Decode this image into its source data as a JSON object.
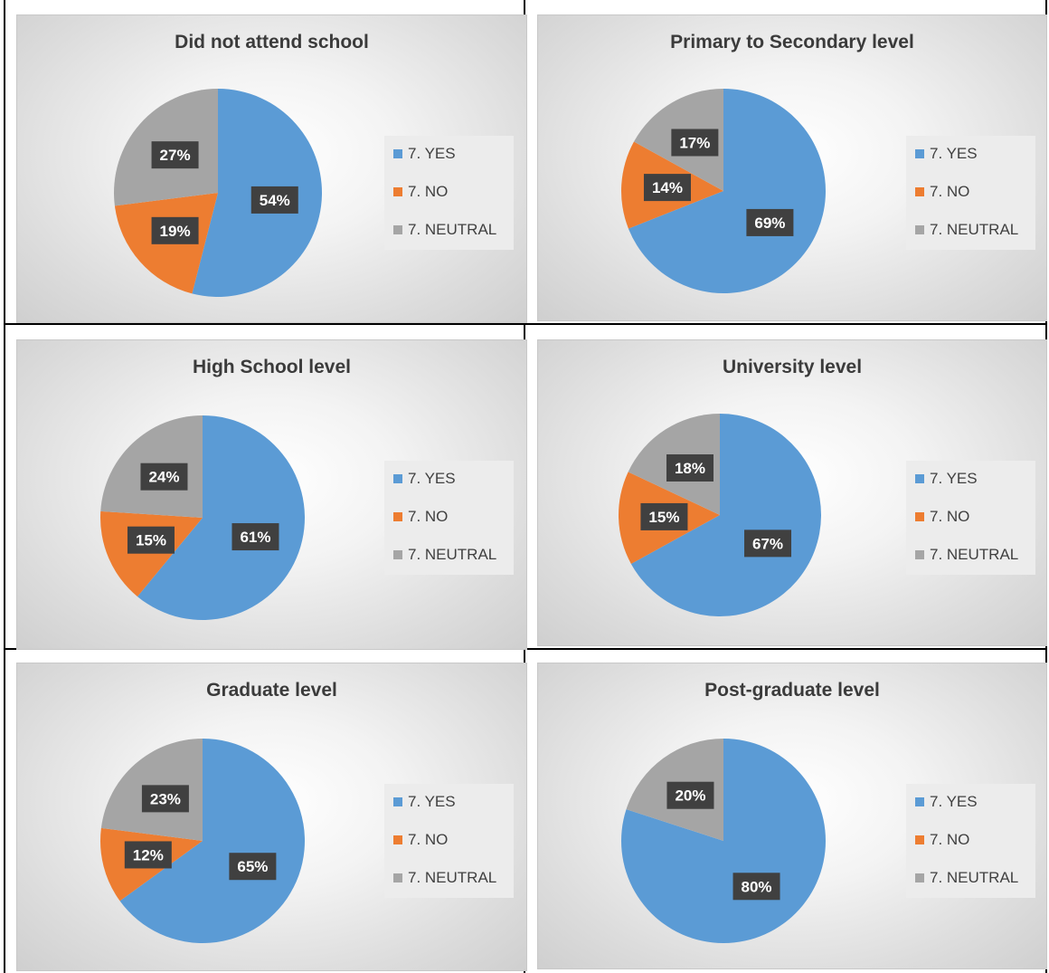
{
  "series_names": [
    "7. YES",
    "7. NO",
    "7. NEUTRAL"
  ],
  "colors": {
    "YES": "#5b9bd5",
    "NO": "#ed7d31",
    "NEUTRAL": "#a5a5a5",
    "label_bg": "#404040"
  },
  "chart_data": [
    {
      "type": "pie",
      "title": "Did not attend school",
      "categories": [
        "7. YES",
        "7. NO",
        "7. NEUTRAL"
      ],
      "values": [
        54,
        19,
        27
      ],
      "data_labels": [
        "54%",
        "19%",
        "27%"
      ],
      "legend": "right"
    },
    {
      "type": "pie",
      "title": "Primary to Secondary level",
      "categories": [
        "7. YES",
        "7. NO",
        "7. NEUTRAL"
      ],
      "values": [
        69,
        14,
        17
      ],
      "data_labels": [
        "69%",
        "14%",
        "17%"
      ],
      "legend": "right"
    },
    {
      "type": "pie",
      "title": "High School level",
      "categories": [
        "7. YES",
        "7. NO",
        "7. NEUTRAL"
      ],
      "values": [
        61,
        15,
        24
      ],
      "data_labels": [
        "61%",
        "15%",
        "24%"
      ],
      "legend": "right"
    },
    {
      "type": "pie",
      "title": "University level",
      "categories": [
        "7. YES",
        "7. NO",
        "7. NEUTRAL"
      ],
      "values": [
        67,
        15,
        18
      ],
      "data_labels": [
        "67%",
        "15%",
        "18%"
      ],
      "legend": "right"
    },
    {
      "type": "pie",
      "title": "Graduate level",
      "categories": [
        "7. YES",
        "7. NO",
        "7. NEUTRAL"
      ],
      "values": [
        65,
        12,
        23
      ],
      "data_labels": [
        "65%",
        "12%",
        "23%"
      ],
      "legend": "right"
    },
    {
      "type": "pie",
      "title": "Post-graduate level",
      "categories": [
        "7. YES",
        "7. NO",
        "7. NEUTRAL"
      ],
      "values": [
        80,
        0,
        20
      ],
      "data_labels": [
        "80%",
        "",
        "20%"
      ],
      "legend": "right"
    }
  ]
}
